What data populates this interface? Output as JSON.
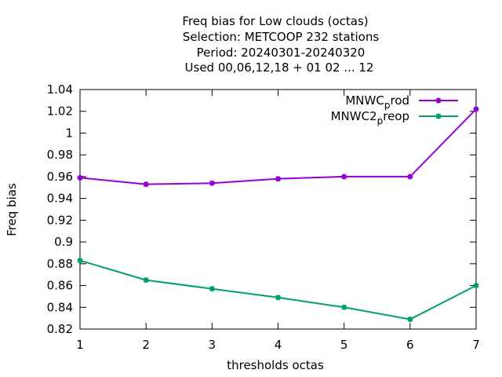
{
  "chart_data": {
    "type": "line",
    "title_lines": [
      "Freq bias  for Low clouds (octas)",
      "Selection: METCOOP    232 stations",
      "Period: 20240301-20240320",
      "Used  00,06,12,18 + 01 02 ... 12"
    ],
    "xlabel": "thresholds octas",
    "ylabel": "Freq bias",
    "x": [
      1,
      2,
      3,
      4,
      5,
      6,
      7
    ],
    "xlim": [
      1,
      7
    ],
    "ylim": [
      0.82,
      1.04
    ],
    "yticks": [
      "0.82",
      "0.84",
      "0.86",
      "0.88",
      "0.9",
      "0.92",
      "0.94",
      "0.96",
      "0.98",
      "1",
      "1.02",
      "1.04"
    ],
    "xticks": [
      "1",
      "2",
      "3",
      "4",
      "5",
      "6",
      "7"
    ],
    "grid": false,
    "legend_position": "top-right",
    "series": [
      {
        "name_main": "MNWC",
        "name_sub": "p",
        "name_rest": "rod",
        "color": "#9400d3",
        "values": [
          0.959,
          0.953,
          0.954,
          0.958,
          0.96,
          0.96,
          1.022
        ]
      },
      {
        "name_main": "MNWC2",
        "name_sub": "p",
        "name_rest": "reop",
        "color": "#009e73",
        "values": [
          0.883,
          0.865,
          0.857,
          0.849,
          0.84,
          0.829,
          0.86
        ]
      }
    ]
  }
}
